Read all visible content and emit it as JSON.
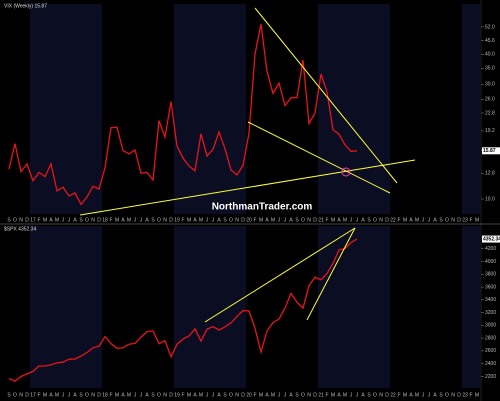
{
  "chart_data": [
    {
      "type": "line",
      "title": "VIX (Weekly) 15.87",
      "log_scale": true,
      "annotation": "NorthmanTrader.com",
      "last_value_label": "15.87",
      "categories": [
        "S",
        "O",
        "N",
        "D",
        "17",
        "F",
        "M",
        "A",
        "M",
        "J",
        "J",
        "A",
        "S",
        "O",
        "N",
        "D",
        "18",
        "F",
        "M",
        "A",
        "M",
        "J",
        "J",
        "A",
        "S",
        "O",
        "N",
        "D",
        "19",
        "F",
        "M",
        "A",
        "M",
        "J",
        "J",
        "A",
        "S",
        "O",
        "N",
        "D",
        "20",
        "F",
        "M",
        "A",
        "M",
        "J",
        "J",
        "A",
        "S",
        "O",
        "N",
        "D",
        "21",
        "F",
        "M",
        "A",
        "M",
        "J",
        "J",
        "A",
        "S",
        "O",
        "N",
        "D",
        "22",
        "F",
        "M",
        "A",
        "M",
        "J",
        "J",
        "A",
        "S",
        "O",
        "N",
        "D",
        "23",
        "F",
        "M"
      ],
      "series": [
        {
          "name": "VIX",
          "color": "#e8141c",
          "values": [
            13.3,
            17,
            13,
            14,
            11.9,
            12.9,
            12.4,
            14,
            10.8,
            11.2,
            10.3,
            10.6,
            9.5,
            10.2,
            11.3,
            11,
            13.5,
            19.8,
            19.9,
            15.9,
            15.4,
            16,
            12.8,
            12.9,
            12,
            21.2,
            18.1,
            25.4,
            16.6,
            14.8,
            13.7,
            13.1,
            18.7,
            15.1,
            16.1,
            19,
            16.2,
            13.2,
            12.6,
            13.8,
            18.8,
            40.1,
            53.5,
            34,
            27.5,
            30.4,
            24.5,
            26.4,
            26.4,
            38,
            20.6,
            22.8,
            33.1,
            27.9,
            19.4,
            18.6,
            16.8,
            15.8,
            15.87,
            null,
            null,
            null,
            null,
            null,
            null,
            null,
            null,
            null,
            null,
            null,
            null,
            null,
            null,
            null,
            null,
            null,
            null,
            null,
            null
          ]
        }
      ],
      "ylim": [
        9,
        60
      ],
      "yticks": [
        {
          "value": 10,
          "label": "10.0"
        },
        12.8,
        {
          "value": 16,
          "label": "16.0"
        },
        19.2,
        22.8,
        {
          "value": 26,
          "label": "26.0"
        },
        {
          "value": 30,
          "label": "30.0"
        },
        {
          "value": 35,
          "label": "35.0"
        },
        {
          "value": 40,
          "label": "40.0"
        },
        45.6,
        {
          "value": 52,
          "label": "52.0"
        }
      ]
    },
    {
      "type": "line",
      "title": "$SPX 4352.34",
      "log_scale": false,
      "last_value_label": "4352.34",
      "categories": [
        "S",
        "O",
        "N",
        "D",
        "17",
        "F",
        "M",
        "A",
        "M",
        "J",
        "J",
        "A",
        "S",
        "O",
        "N",
        "D",
        "18",
        "F",
        "M",
        "A",
        "M",
        "J",
        "J",
        "A",
        "S",
        "O",
        "N",
        "D",
        "19",
        "F",
        "M",
        "A",
        "M",
        "J",
        "J",
        "A",
        "S",
        "O",
        "N",
        "D",
        "20",
        "F",
        "M",
        "A",
        "M",
        "J",
        "J",
        "A",
        "S",
        "O",
        "N",
        "D",
        "21",
        "F",
        "M",
        "A",
        "M",
        "J",
        "J",
        "A",
        "S",
        "O",
        "N",
        "D",
        "22",
        "F",
        "M",
        "A",
        "M",
        "J",
        "J",
        "A",
        "S",
        "O",
        "N",
        "D",
        "23",
        "F",
        "M"
      ],
      "series": [
        {
          "name": "SPX",
          "color": "#e8141c",
          "values": [
            2168,
            2126,
            2199,
            2239,
            2279,
            2364,
            2363,
            2384,
            2412,
            2423,
            2470,
            2472,
            2519,
            2575,
            2648,
            2674,
            2824,
            2714,
            2641,
            2648,
            2705,
            2718,
            2816,
            2902,
            2914,
            2712,
            2760,
            2507,
            2704,
            2784,
            2834,
            2946,
            2752,
            2942,
            2980,
            2926,
            2977,
            3038,
            3141,
            3231,
            3226,
            2954,
            2585,
            2912,
            3044,
            3100,
            3271,
            3500,
            3363,
            3270,
            3622,
            3756,
            3714,
            3811,
            3973,
            4181,
            4204,
            4298,
            4352,
            null,
            null,
            null,
            null,
            null,
            null,
            null,
            null,
            null,
            null,
            null,
            null,
            null,
            null,
            null,
            null,
            null,
            null,
            null,
            null
          ]
        }
      ],
      "ylim": [
        2050,
        4400
      ],
      "yticks": [
        2200,
        2400,
        2600,
        2800,
        3000,
        3200,
        3400,
        3600,
        3800,
        4000,
        4200
      ]
    }
  ]
}
